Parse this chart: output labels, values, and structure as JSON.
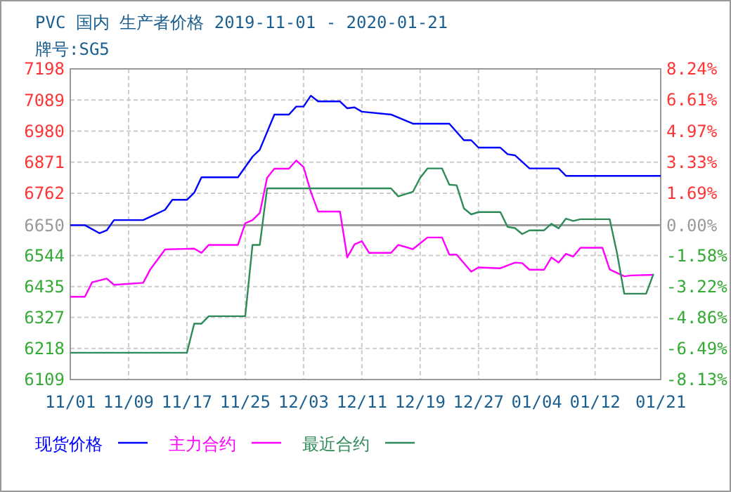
{
  "chart_data": {
    "type": "line",
    "title": "PVC 国内 生产者价格 2019-11-01 - 2020-01-21",
    "subtitle": "牌号:SG5",
    "xlim": [
      "2019-11-01",
      "2020-01-21"
    ],
    "xticks": [
      {
        "value": "2019-11-01",
        "label": "11/01"
      },
      {
        "value": "2019-11-09",
        "label": "11/09"
      },
      {
        "value": "2019-11-17",
        "label": "11/17"
      },
      {
        "value": "2019-11-25",
        "label": "11/25"
      },
      {
        "value": "2019-12-03",
        "label": "12/03"
      },
      {
        "value": "2019-12-11",
        "label": "12/11"
      },
      {
        "value": "2019-12-19",
        "label": "12/19"
      },
      {
        "value": "2019-12-27",
        "label": "12/27"
      },
      {
        "value": "2020-01-04",
        "label": "01/04"
      },
      {
        "value": "2020-01-12",
        "label": "01/12"
      },
      {
        "value": "2020-01-21",
        "label": "01/21"
      }
    ],
    "ylim": [
      6109,
      7198
    ],
    "yticks": [
      6109,
      6218,
      6327,
      6435,
      6544,
      6650,
      6762,
      6871,
      6980,
      7089,
      7198
    ],
    "y2lim": [
      -8.13,
      8.24
    ],
    "y2ticks": [
      {
        "value": -8.13,
        "label": "-8.13%"
      },
      {
        "value": -6.49,
        "label": "-6.49%"
      },
      {
        "value": -4.86,
        "label": "-4.86%"
      },
      {
        "value": -3.22,
        "label": "-3.22%"
      },
      {
        "value": -1.58,
        "label": "-1.58%"
      },
      {
        "value": 0,
        "label": "0.00%"
      },
      {
        "value": 1.69,
        "label": "1.69%"
      },
      {
        "value": 3.33,
        "label": "3.33%"
      },
      {
        "value": 4.97,
        "label": "4.97%"
      },
      {
        "value": 6.61,
        "label": "6.61%"
      },
      {
        "value": 8.24,
        "label": "8.24%"
      }
    ],
    "grid": true,
    "legend": "bottom",
    "line_style": "solid",
    "marker": "none",
    "ref_lines": [
      {
        "axis": "y",
        "value": 6650,
        "color": "#999999"
      }
    ],
    "series": [
      {
        "name": "现货价格",
        "color": "#0000ff",
        "x": [
          "2019-11-01",
          "2019-11-03",
          "2019-11-05",
          "2019-11-06",
          "2019-11-07",
          "2019-11-11",
          "2019-11-14",
          "2019-11-15",
          "2019-11-17",
          "2019-11-18",
          "2019-11-19",
          "2019-11-24",
          "2019-11-26",
          "2019-11-27",
          "2019-11-29",
          "2019-12-01",
          "2019-12-02",
          "2019-12-03",
          "2019-12-04",
          "2019-12-05",
          "2019-12-08",
          "2019-12-09",
          "2019-12-10",
          "2019-12-11",
          "2019-12-15",
          "2019-12-18",
          "2019-12-23",
          "2019-12-25",
          "2019-12-26",
          "2019-12-27",
          "2019-12-30",
          "2019-12-31",
          "2020-01-01",
          "2020-01-03",
          "2020-01-07",
          "2020-01-08",
          "2020-01-21"
        ],
        "values": [
          6650,
          6650,
          6622,
          6632,
          6668,
          6668,
          6704,
          6739,
          6739,
          6764,
          6818,
          6818,
          6890,
          6915,
          7038,
          7038,
          7066,
          7066,
          7104,
          7084,
          7084,
          7060,
          7063,
          7048,
          7038,
          7006,
          7006,
          6948,
          6948,
          6922,
          6922,
          6899,
          6895,
          6849,
          6849,
          6823,
          6823
        ]
      },
      {
        "name": "主力合约",
        "color": "#ff00ff",
        "x": [
          "2019-11-01",
          "2019-11-03",
          "2019-11-04",
          "2019-11-06",
          "2019-11-07",
          "2019-11-11",
          "2019-11-12",
          "2019-11-14",
          "2019-11-18",
          "2019-11-19",
          "2019-11-20",
          "2019-11-24",
          "2019-11-25",
          "2019-11-26",
          "2019-11-27",
          "2019-11-28",
          "2019-11-29",
          "2019-12-01",
          "2019-12-02",
          "2019-12-03",
          "2019-12-04",
          "2019-12-05",
          "2019-12-08",
          "2019-12-09",
          "2019-12-10",
          "2019-12-11",
          "2019-12-12",
          "2019-12-15",
          "2019-12-16",
          "2019-12-18",
          "2019-12-20",
          "2019-12-22",
          "2019-12-23",
          "2019-12-24",
          "2019-12-26",
          "2019-12-27",
          "2019-12-30",
          "2020-01-01",
          "2020-01-02",
          "2020-01-03",
          "2020-01-05",
          "2020-01-06",
          "2020-01-07",
          "2020-01-08",
          "2020-01-09",
          "2020-01-10",
          "2020-01-13",
          "2020-01-14",
          "2020-01-16",
          "2020-01-17",
          "2020-01-20"
        ],
        "values": [
          6399,
          6399,
          6450,
          6463,
          6441,
          6448,
          6496,
          6565,
          6568,
          6553,
          6581,
          6581,
          6657,
          6668,
          6693,
          6816,
          6848,
          6848,
          6877,
          6854,
          6767,
          6698,
          6698,
          6537,
          6583,
          6594,
          6553,
          6553,
          6581,
          6566,
          6607,
          6607,
          6547,
          6547,
          6487,
          6502,
          6499,
          6519,
          6517,
          6494,
          6494,
          6537,
          6519,
          6550,
          6540,
          6571,
          6571,
          6495,
          6471,
          6474,
          6476
        ]
      },
      {
        "name": "最近合约",
        "color": "#2e8b57",
        "x": [
          "2019-11-01",
          "2019-11-17",
          "2019-11-18",
          "2019-11-19",
          "2019-11-20",
          "2019-11-25",
          "2019-11-26",
          "2019-11-27",
          "2019-11-28",
          "2019-12-15",
          "2019-12-16",
          "2019-12-18",
          "2019-12-19",
          "2019-12-20",
          "2019-12-22",
          "2019-12-23",
          "2019-12-24",
          "2019-12-25",
          "2019-12-26",
          "2019-12-27",
          "2019-12-30",
          "2019-12-31",
          "2020-01-01",
          "2020-01-02",
          "2020-01-03",
          "2020-01-05",
          "2020-01-06",
          "2020-01-07",
          "2020-01-08",
          "2020-01-09",
          "2020-01-10",
          "2020-01-14",
          "2020-01-15",
          "2020-01-16",
          "2020-01-19",
          "2020-01-20"
        ],
        "values": [
          6203,
          6203,
          6305,
          6305,
          6331,
          6331,
          6581,
          6581,
          6779,
          6779,
          6751,
          6767,
          6816,
          6849,
          6849,
          6792,
          6790,
          6709,
          6688,
          6696,
          6696,
          6644,
          6640,
          6619,
          6632,
          6632,
          6655,
          6639,
          6673,
          6665,
          6671,
          6671,
          6553,
          6410,
          6410,
          6479
        ]
      }
    ]
  }
}
